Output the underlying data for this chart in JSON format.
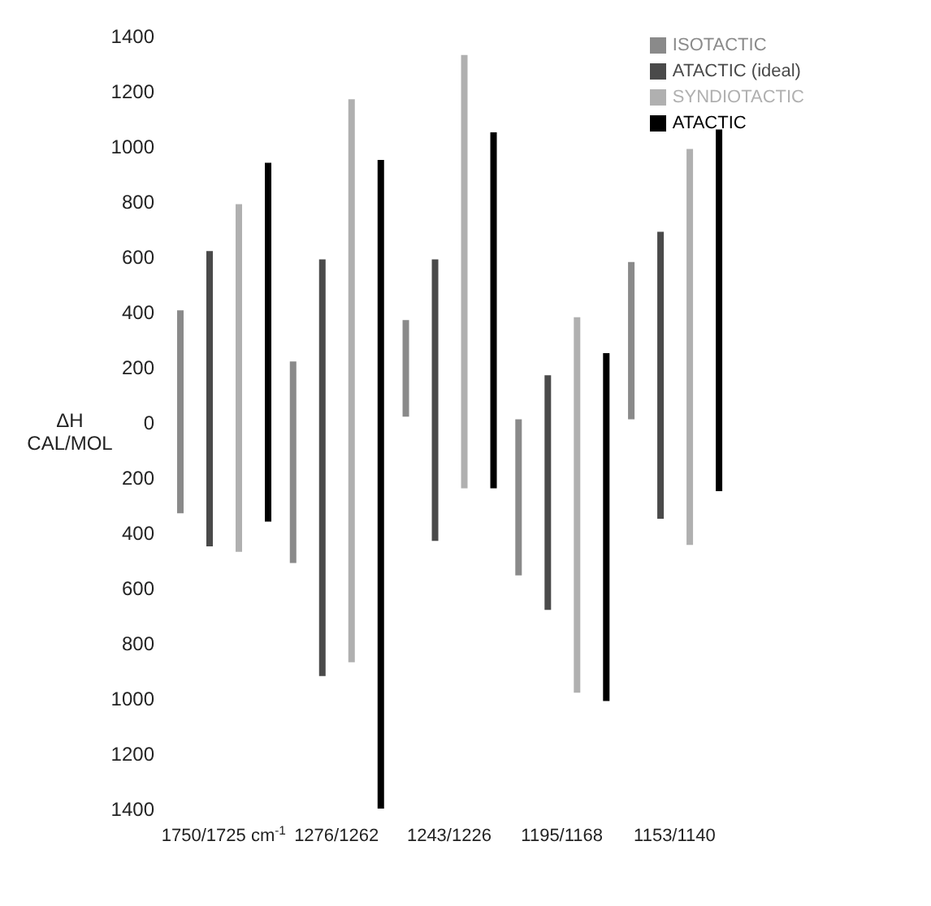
{
  "chart_data": {
    "type": "bar",
    "ylabel": "ΔH CAL/MOL",
    "categories": [
      "1750/1725 cm$^{-1}$",
      "1276/1262",
      "1243/1226",
      "1195/1168",
      "1153/1140"
    ],
    "series": [
      {
        "name": "ISOTACTIC",
        "color": "#8a8a8a",
        "base": [
          -330,
          -510,
          20,
          -555,
          10
        ],
        "values": [
          735,
          730,
          350,
          565,
          570
        ]
      },
      {
        "name": "ATACTIC (ideal)",
        "color": "#4a4a4a",
        "base": [
          -450,
          -920,
          -430,
          -680,
          -350
        ],
        "values": [
          1070,
          1510,
          1020,
          850,
          1040
        ]
      },
      {
        "name": "SYNDIOTACTIC",
        "color": "#b0b0b0",
        "base": [
          -470,
          -870,
          -240,
          -980,
          -445
        ],
        "values": [
          1260,
          2040,
          1570,
          1360,
          1435
        ]
      },
      {
        "name": "ATACTIC",
        "color": "#000000",
        "base": [
          -360,
          -1400,
          -240,
          -1010,
          -250
        ],
        "values": [
          1300,
          2350,
          1290,
          1260,
          1310
        ]
      }
    ],
    "ylim": [
      -1400,
      1400
    ],
    "yticks": [
      1400,
      1200,
      1000,
      800,
      600,
      400,
      200,
      0,
      {
        "value": -200,
        "label": "200"
      },
      {
        "value": -400,
        "label": "400"
      },
      {
        "value": -600,
        "label": "600"
      },
      {
        "value": -800,
        "label": "800"
      },
      {
        "value": -1000,
        "label": "1000"
      },
      {
        "value": -1200,
        "label": "1200"
      },
      {
        "value": -1400,
        "label": "1400"
      }
    ],
    "grid": false,
    "legend": "top right"
  }
}
